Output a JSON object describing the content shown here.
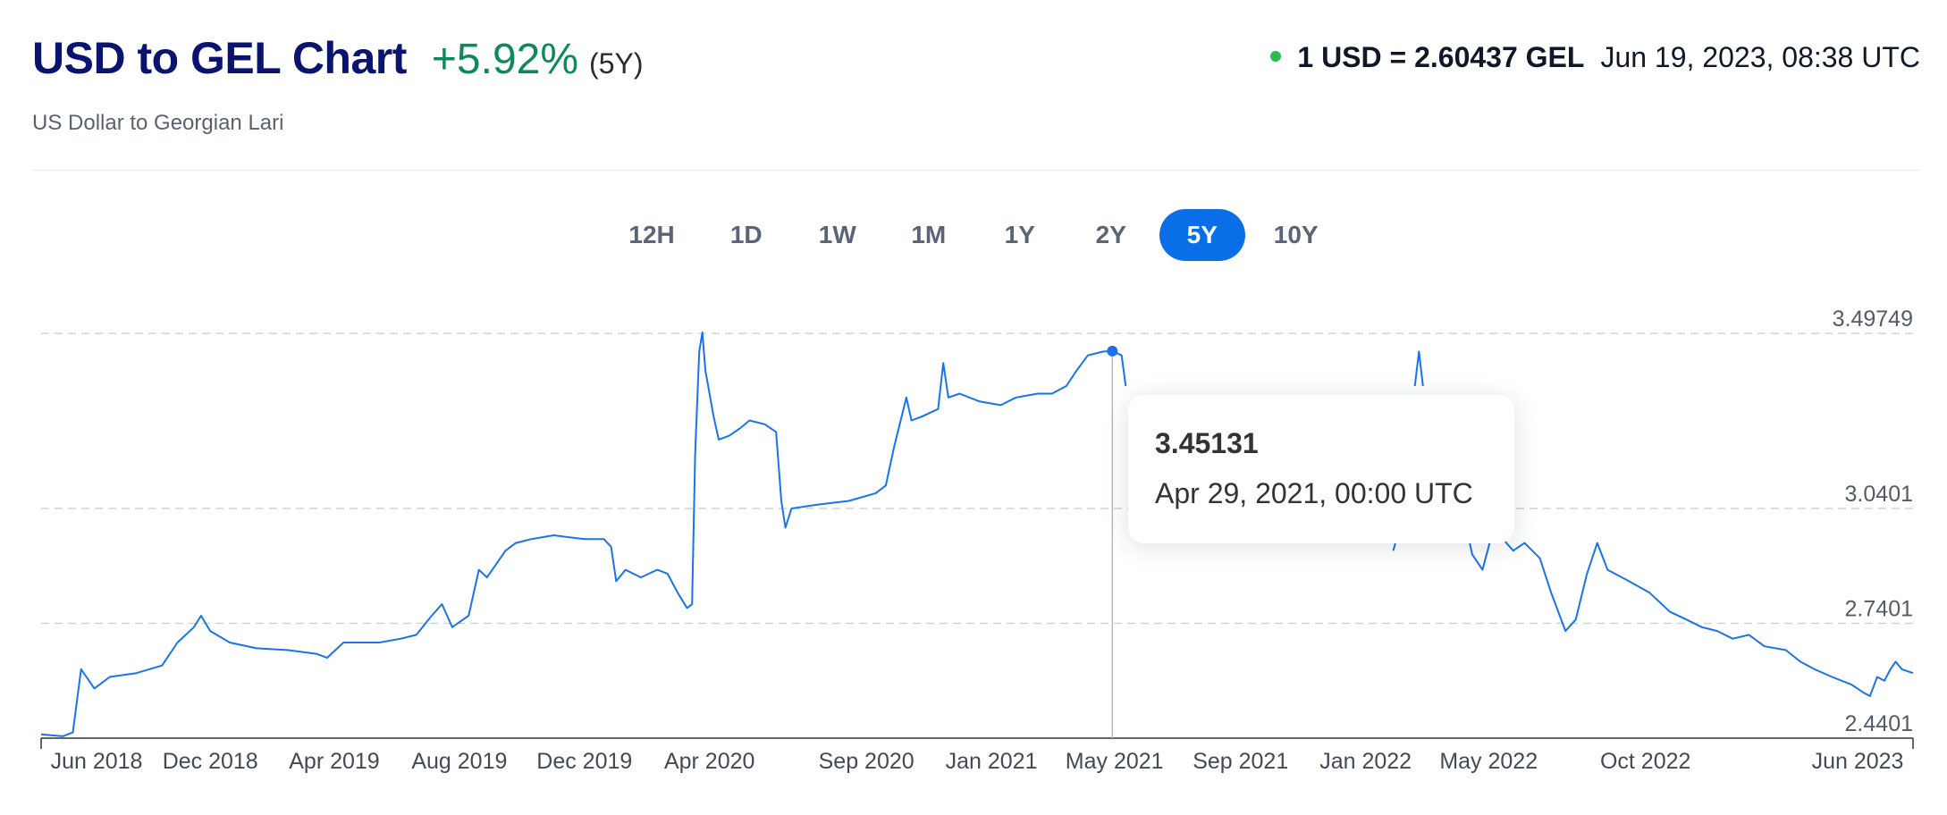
{
  "header": {
    "title": "USD to GEL Chart",
    "change": "+5.92%",
    "change_period": "(5Y)",
    "subtitle": "US Dollar to Georgian Lari",
    "quote_rate": "1 USD = 2.60437 GEL",
    "quote_time": "Jun 19, 2023, 08:38 UTC"
  },
  "periods": [
    {
      "label": "12H",
      "active": false
    },
    {
      "label": "1D",
      "active": false
    },
    {
      "label": "1W",
      "active": false
    },
    {
      "label": "1M",
      "active": false
    },
    {
      "label": "1Y",
      "active": false
    },
    {
      "label": "2Y",
      "active": false
    },
    {
      "label": "5Y",
      "active": true
    },
    {
      "label": "10Y",
      "active": false
    }
  ],
  "tooltip": {
    "value": "3.45131",
    "date": "Apr 29, 2021, 00:00 UTC"
  },
  "colors": {
    "line": "#1a73e8",
    "positive": "#0c8a5e",
    "title": "#0a146e",
    "active_button": "#0a6ee6",
    "live_dot": "#2dbb4f"
  },
  "chart_data": {
    "type": "line",
    "title": "USD to GEL Chart",
    "xlabel": "",
    "ylabel": "",
    "x_range": [
      "2018-06-19",
      "2023-06-19"
    ],
    "ylim": [
      2.4401,
      3.5
    ],
    "y_ticks": [
      "3.49749",
      "3.0401",
      "2.7401",
      "2.4401"
    ],
    "x_ticks": [
      {
        "label": "Jun 2018",
        "date": "2018-06-01"
      },
      {
        "label": "Dec 2018",
        "date": "2018-12-01"
      },
      {
        "label": "Apr 2019",
        "date": "2019-04-01"
      },
      {
        "label": "Aug 2019",
        "date": "2019-08-01"
      },
      {
        "label": "Dec 2019",
        "date": "2019-12-01"
      },
      {
        "label": "Apr 2020",
        "date": "2020-04-01"
      },
      {
        "label": "Sep 2020",
        "date": "2020-09-01"
      },
      {
        "label": "Jan 2021",
        "date": "2021-01-01"
      },
      {
        "label": "May 2021",
        "date": "2021-05-01"
      },
      {
        "label": "Sep 2021",
        "date": "2021-09-01"
      },
      {
        "label": "Jan 2022",
        "date": "2022-01-01"
      },
      {
        "label": "May 2022",
        "date": "2022-05-01"
      },
      {
        "label": "Oct 2022",
        "date": "2022-10-01"
      },
      {
        "label": "Jun 2023",
        "date": "2023-06-01"
      }
    ],
    "grid": true,
    "highlight": {
      "date": "2021-04-29",
      "value": 3.45131
    },
    "series": [
      {
        "points": [
          [
            "2018-06-19",
            2.45
          ],
          [
            "2018-07-10",
            2.445
          ],
          [
            "2018-07-20",
            2.455
          ],
          [
            "2018-07-28",
            2.62
          ],
          [
            "2018-08-10",
            2.57
          ],
          [
            "2018-08-25",
            2.6
          ],
          [
            "2018-09-20",
            2.61
          ],
          [
            "2018-10-15",
            2.63
          ],
          [
            "2018-10-30",
            2.69
          ],
          [
            "2018-11-15",
            2.73
          ],
          [
            "2018-11-22",
            2.76
          ],
          [
            "2018-12-01",
            2.72
          ],
          [
            "2018-12-20",
            2.69
          ],
          [
            "2019-01-15",
            2.675
          ],
          [
            "2019-02-15",
            2.67
          ],
          [
            "2019-03-15",
            2.66
          ],
          [
            "2019-03-25",
            2.65
          ],
          [
            "2019-04-10",
            2.69
          ],
          [
            "2019-05-15",
            2.69
          ],
          [
            "2019-06-05",
            2.7
          ],
          [
            "2019-06-20",
            2.71
          ],
          [
            "2019-07-05",
            2.76
          ],
          [
            "2019-07-15",
            2.79
          ],
          [
            "2019-07-25",
            2.73
          ],
          [
            "2019-08-10",
            2.76
          ],
          [
            "2019-08-20",
            2.88
          ],
          [
            "2019-08-28",
            2.86
          ],
          [
            "2019-09-15",
            2.93
          ],
          [
            "2019-09-25",
            2.95
          ],
          [
            "2019-10-10",
            2.96
          ],
          [
            "2019-11-01",
            2.97
          ],
          [
            "2019-12-01",
            2.96
          ],
          [
            "2019-12-20",
            2.96
          ],
          [
            "2019-12-27",
            2.94
          ],
          [
            "2020-01-01",
            2.85
          ],
          [
            "2020-01-10",
            2.88
          ],
          [
            "2020-01-25",
            2.86
          ],
          [
            "2020-02-10",
            2.88
          ],
          [
            "2020-02-20",
            2.87
          ],
          [
            "2020-03-01",
            2.82
          ],
          [
            "2020-03-10",
            2.78
          ],
          [
            "2020-03-15",
            2.79
          ],
          [
            "2020-03-18",
            3.18
          ],
          [
            "2020-03-22",
            3.45
          ],
          [
            "2020-03-25",
            3.5
          ],
          [
            "2020-03-28",
            3.4
          ],
          [
            "2020-04-05",
            3.28
          ],
          [
            "2020-04-10",
            3.22
          ],
          [
            "2020-04-20",
            3.23
          ],
          [
            "2020-05-01",
            3.25
          ],
          [
            "2020-05-10",
            3.27
          ],
          [
            "2020-05-25",
            3.26
          ],
          [
            "2020-06-05",
            3.24
          ],
          [
            "2020-06-10",
            3.06
          ],
          [
            "2020-06-14",
            2.99
          ],
          [
            "2020-06-20",
            3.04
          ],
          [
            "2020-07-15",
            3.05
          ],
          [
            "2020-08-15",
            3.06
          ],
          [
            "2020-09-10",
            3.08
          ],
          [
            "2020-09-20",
            3.1
          ],
          [
            "2020-09-28",
            3.2
          ],
          [
            "2020-10-10",
            3.33
          ],
          [
            "2020-10-15",
            3.27
          ],
          [
            "2020-10-25",
            3.28
          ],
          [
            "2020-11-10",
            3.3
          ],
          [
            "2020-11-15",
            3.42
          ],
          [
            "2020-11-20",
            3.33
          ],
          [
            "2020-12-01",
            3.34
          ],
          [
            "2020-12-20",
            3.32
          ],
          [
            "2021-01-10",
            3.31
          ],
          [
            "2021-01-25",
            3.33
          ],
          [
            "2021-02-15",
            3.34
          ],
          [
            "2021-03-01",
            3.34
          ],
          [
            "2021-03-15",
            3.36
          ],
          [
            "2021-03-25",
            3.4
          ],
          [
            "2021-04-05",
            3.44
          ],
          [
            "2021-04-20",
            3.45
          ],
          [
            "2021-04-29",
            3.45131
          ],
          [
            "2021-05-08",
            3.44
          ],
          [
            "2021-05-12",
            3.36
          ]
        ]
      },
      {
        "points": [
          [
            "2022-01-28",
            2.93
          ],
          [
            "2022-02-01",
            2.97
          ],
          [
            "2022-02-05",
            2.99
          ]
        ]
      },
      {
        "points": [
          [
            "2022-02-18",
            3.36
          ],
          [
            "2022-02-22",
            3.45
          ],
          [
            "2022-02-26",
            3.36
          ]
        ]
      },
      {
        "points": [
          [
            "2022-04-10",
            2.98
          ],
          [
            "2022-04-15",
            2.92
          ],
          [
            "2022-04-25",
            2.88
          ],
          [
            "2022-05-05",
            2.98
          ],
          [
            "2022-05-15",
            2.96
          ],
          [
            "2022-05-25",
            2.93
          ],
          [
            "2022-06-05",
            2.95
          ],
          [
            "2022-06-20",
            2.91
          ],
          [
            "2022-07-01",
            2.82
          ],
          [
            "2022-07-15",
            2.72
          ],
          [
            "2022-07-25",
            2.75
          ],
          [
            "2022-08-05",
            2.87
          ],
          [
            "2022-08-15",
            2.95
          ],
          [
            "2022-08-25",
            2.88
          ],
          [
            "2022-09-15",
            2.85
          ],
          [
            "2022-10-05",
            2.82
          ],
          [
            "2022-10-25",
            2.77
          ],
          [
            "2022-11-10",
            2.75
          ],
          [
            "2022-11-25",
            2.73
          ],
          [
            "2022-12-10",
            2.72
          ],
          [
            "2022-12-25",
            2.7
          ],
          [
            "2023-01-10",
            2.71
          ],
          [
            "2023-01-25",
            2.68
          ],
          [
            "2023-02-15",
            2.67
          ],
          [
            "2023-03-01",
            2.64
          ],
          [
            "2023-03-15",
            2.62
          ],
          [
            "2023-04-01",
            2.6
          ],
          [
            "2023-04-20",
            2.58
          ],
          [
            "2023-05-01",
            2.56
          ],
          [
            "2023-05-08",
            2.55
          ],
          [
            "2023-05-15",
            2.6
          ],
          [
            "2023-05-22",
            2.59
          ],
          [
            "2023-05-28",
            2.62
          ],
          [
            "2023-06-02",
            2.64
          ],
          [
            "2023-06-08",
            2.62
          ],
          [
            "2023-06-19",
            2.61
          ]
        ]
      }
    ]
  }
}
